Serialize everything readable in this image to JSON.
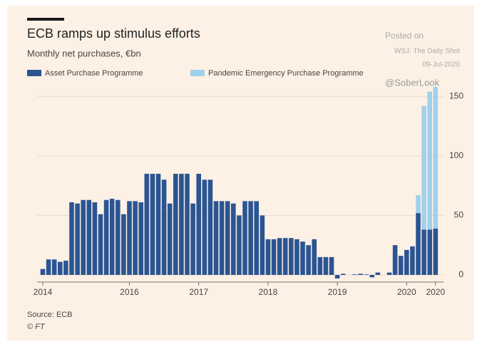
{
  "chart_data": {
    "type": "stacked_bar",
    "title": "ECB ramps up stimulus efforts",
    "subtitle": "Monthly net purchases, €bn",
    "annotations": [
      "Posted on",
      "WSJ: The Daily Shot",
      "09-Jul-2020",
      "@SoberLook"
    ],
    "source": "Source: ECB",
    "credit": "© FT",
    "categories": [
      "2014",
      null,
      null,
      null,
      null,
      null,
      null,
      null,
      null,
      null,
      null,
      null,
      null,
      null,
      null,
      "2016",
      null,
      null,
      null,
      null,
      null,
      null,
      null,
      null,
      null,
      null,
      null,
      "2017",
      null,
      null,
      null,
      null,
      null,
      null,
      null,
      null,
      null,
      null,
      null,
      "2018",
      null,
      null,
      null,
      null,
      null,
      null,
      null,
      null,
      null,
      null,
      null,
      "2019",
      null,
      null,
      null,
      null,
      null,
      null,
      null,
      null,
      null,
      null,
      null,
      "2020",
      null,
      null,
      null,
      null,
      "2020"
    ],
    "series": [
      {
        "name": "Asset Purchase Programme",
        "color": "#2b5592",
        "values": [
          5,
          13,
          13,
          11,
          12,
          61,
          60,
          63,
          63,
          61,
          51,
          63,
          64,
          63,
          51,
          62,
          62,
          61,
          85,
          85,
          85,
          80,
          60,
          85,
          85,
          85,
          60,
          85,
          80,
          80,
          62,
          62,
          62,
          60,
          50,
          62,
          62,
          62,
          50,
          30,
          30,
          31,
          31,
          31,
          30,
          28,
          25,
          30,
          15,
          15,
          15,
          -3,
          1,
          0,
          0.5,
          1,
          0.5,
          -2,
          2,
          0,
          2,
          25,
          16,
          21,
          24,
          52,
          38,
          38,
          39
        ]
      },
      {
        "name": "Pandemic Emergency Purchase Programme",
        "color": "#9fd1ea",
        "values": [
          0,
          0,
          0,
          0,
          0,
          0,
          0,
          0,
          0,
          0,
          0,
          0,
          0,
          0,
          0,
          0,
          0,
          0,
          0,
          0,
          0,
          0,
          0,
          0,
          0,
          0,
          0,
          0,
          0,
          0,
          0,
          0,
          0,
          0,
          0,
          0,
          0,
          0,
          0,
          0,
          0,
          0,
          0,
          0,
          0,
          0,
          0,
          0,
          0,
          0,
          0,
          0,
          0,
          0,
          0,
          0,
          0,
          0,
          0,
          0,
          0,
          0,
          0,
          0,
          0,
          15,
          104,
          116,
          119
        ]
      }
    ],
    "ylim": [
      -6,
      158
    ],
    "yticks": [
      0,
      50,
      100,
      150
    ],
    "grid": true,
    "y_axis_side": "right"
  }
}
